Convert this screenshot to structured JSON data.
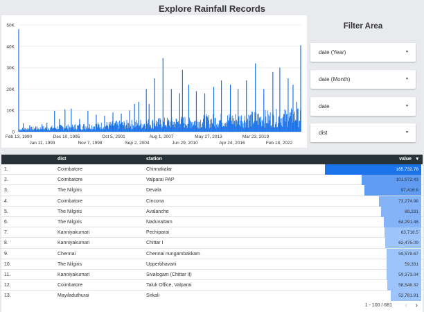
{
  "title": "Explore Rainfall Records",
  "filter_area": {
    "title": "Filter Area",
    "filters": [
      {
        "label": "date (Year)"
      },
      {
        "label": "date (Month)"
      },
      {
        "label": "date"
      },
      {
        "label": "dist"
      }
    ]
  },
  "chart_data": {
    "type": "bar",
    "title": "",
    "xlabel": "",
    "ylabel": "",
    "ylim": [
      0,
      50000
    ],
    "yticks": [
      "0",
      "10K",
      "20K",
      "30K",
      "40K",
      "50K"
    ],
    "xticks_top": [
      "Feb 13, 1990",
      "Dec 10, 1995",
      "Oct 5, 2001",
      "Aug 1, 2007",
      "May 27, 2013",
      "Mar 23, 2019"
    ],
    "xticks_bottom": [
      "Jan 11, 1993",
      "Nov 7, 1998",
      "Sep 2, 2004",
      "Jun 29, 2010",
      "Apr 24, 2016",
      "Feb 18, 2022"
    ],
    "color": "#1a73e8",
    "x_start": "1990-02-13",
    "x_end": "2024-01-01",
    "series": [
      {
        "name": "value",
        "points": [
          [
            "1990-02-13",
            48000
          ],
          [
            "1990-09-01",
            4000
          ],
          [
            "1991-06-10",
            3000
          ],
          [
            "1992-03-01",
            2500
          ],
          [
            "1992-12-01",
            3500
          ],
          [
            "1993-07-01",
            4200
          ],
          [
            "1994-06-01",
            9800
          ],
          [
            "1995-01-01",
            6000
          ],
          [
            "1995-09-01",
            10500
          ],
          [
            "1996-06-01",
            10800
          ],
          [
            "1997-06-01",
            6000
          ],
          [
            "1998-06-01",
            9800
          ],
          [
            "1999-06-01",
            8000
          ],
          [
            "2000-06-01",
            7500
          ],
          [
            "2001-06-01",
            9000
          ],
          [
            "2002-06-01",
            8500
          ],
          [
            "2003-06-01",
            10000
          ],
          [
            "2004-01-01",
            13000
          ],
          [
            "2004-07-01",
            14000
          ],
          [
            "2005-06-01",
            20000
          ],
          [
            "2005-10-01",
            13000
          ],
          [
            "2006-06-01",
            25000
          ],
          [
            "2007-06-01",
            34500
          ],
          [
            "2008-06-01",
            20000
          ],
          [
            "2009-06-01",
            18000
          ],
          [
            "2009-10-01",
            29000
          ],
          [
            "2010-07-01",
            22000
          ],
          [
            "2011-06-01",
            19000
          ],
          [
            "2012-06-01",
            18000
          ],
          [
            "2013-07-01",
            21000
          ],
          [
            "2014-06-01",
            24000
          ],
          [
            "2015-07-01",
            22000
          ],
          [
            "2016-06-01",
            20000
          ],
          [
            "2017-06-01",
            24000
          ],
          [
            "2018-07-01",
            32000
          ],
          [
            "2019-07-01",
            20000
          ],
          [
            "2020-08-01",
            28000
          ],
          [
            "2021-06-01",
            30000
          ],
          [
            "2022-06-01",
            25000
          ],
          [
            "2023-01-01",
            22000
          ],
          [
            "2023-06-01",
            14000
          ],
          [
            "2023-12-01",
            40500
          ]
        ]
      }
    ]
  },
  "table": {
    "columns": [
      "dist",
      "station",
      "value"
    ],
    "sort_indicator": "▾",
    "rows": [
      {
        "idx": "1.",
        "dist": "Coimbatore",
        "station": "Chinnakalar",
        "value": "165,732.78",
        "value_num": 165732.78
      },
      {
        "idx": "2.",
        "dist": "Coimbatore",
        "station": "Valparai PAP",
        "value": "101,972.43",
        "value_num": 101972.43
      },
      {
        "idx": "3.",
        "dist": "The Nilgiris",
        "station": "Devala",
        "value": "97,416.6",
        "value_num": 97416.6
      },
      {
        "idx": "4.",
        "dist": "Coimbatore",
        "station": "Cincona",
        "value": "73,274.98",
        "value_num": 73274.98
      },
      {
        "idx": "5.",
        "dist": "The Nilgiris",
        "station": "Avalanche",
        "value": "69,331",
        "value_num": 69331
      },
      {
        "idx": "6.",
        "dist": "The Nilgiris",
        "station": "Naduvattam",
        "value": "64,291.46",
        "value_num": 64291.46
      },
      {
        "idx": "7.",
        "dist": "Kanniyakumari",
        "station": "Pechiparai",
        "value": "63,718.5",
        "value_num": 63718.5
      },
      {
        "idx": "8.",
        "dist": "Kanniyakumari",
        "station": "Chittar I",
        "value": "62,475.09",
        "value_num": 62475.09
      },
      {
        "idx": "9.",
        "dist": "Chennai",
        "station": "Chennai nungambakkam",
        "value": "59,579.67",
        "value_num": 59579.67
      },
      {
        "idx": "10.",
        "dist": "The Nilgiris",
        "station": "Upperbhavani",
        "value": "59,391",
        "value_num": 59391
      },
      {
        "idx": "11.",
        "dist": "Kanniyakumari",
        "station": "Sivalogam (Chittar II)",
        "value": "59,373.04",
        "value_num": 59373.04
      },
      {
        "idx": "12.",
        "dist": "Coimbatore",
        "station": "Taluk Office, Valparai",
        "value": "58,546.32",
        "value_num": 58546.32
      },
      {
        "idx": "13.",
        "dist": "Mayiladuthurai",
        "station": "Sirkali",
        "value": "52,781.91",
        "value_num": 52781.91
      }
    ]
  },
  "pager": {
    "count": "1 - 100 / 681",
    "prev_icon": "‹",
    "next_icon": "›"
  }
}
